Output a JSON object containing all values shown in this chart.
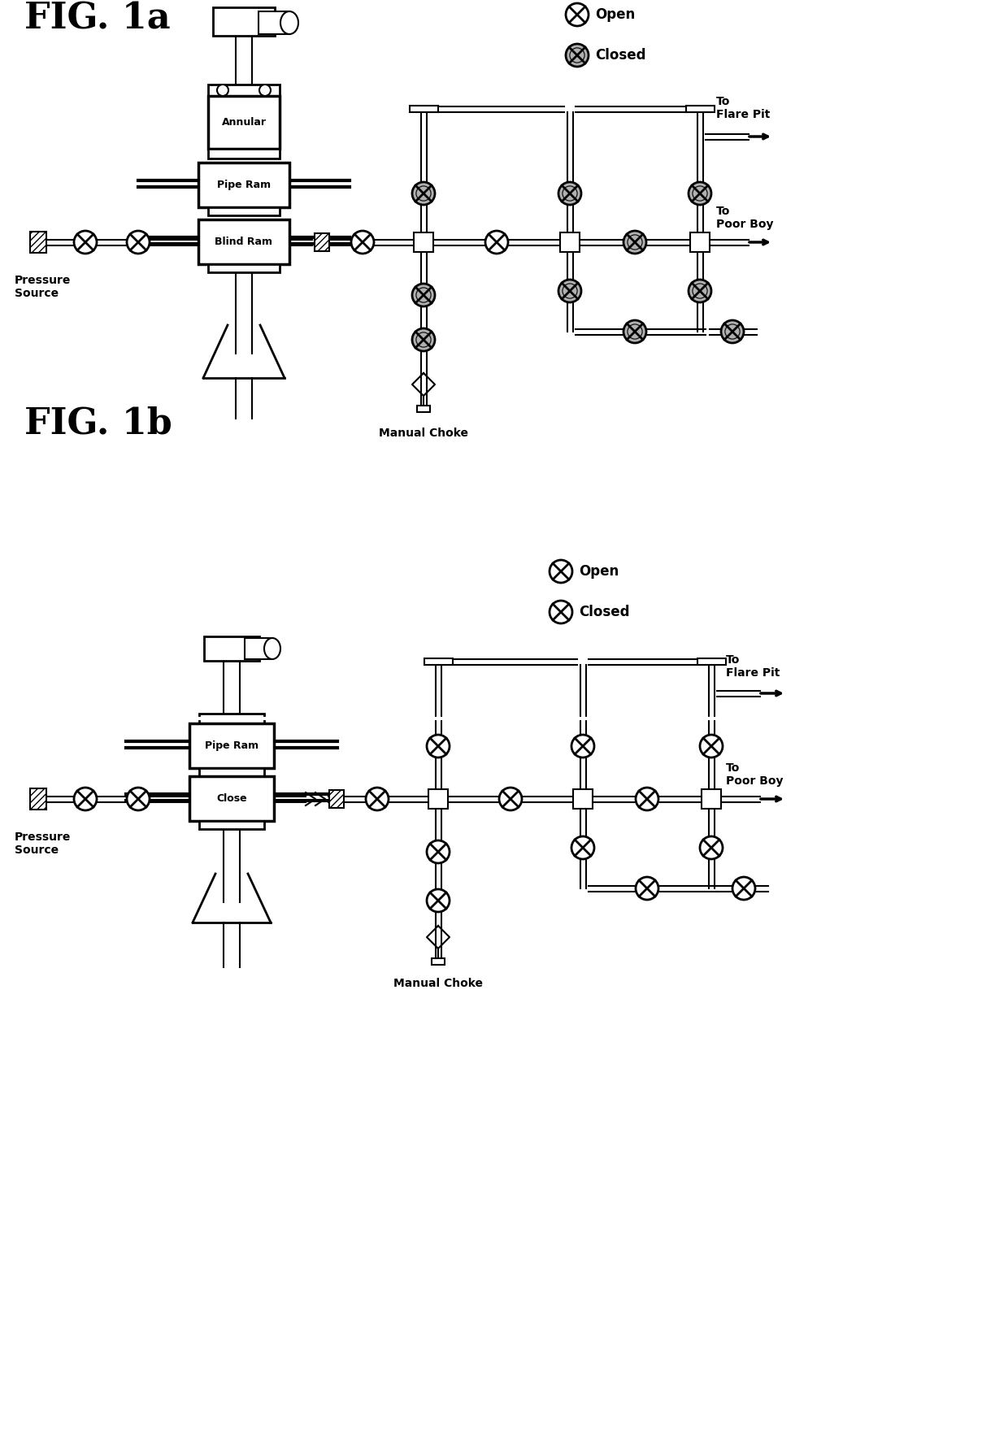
{
  "fig_width": 12.4,
  "fig_height": 17.68,
  "bg_color": "#ffffff",
  "line_color": "#000000",
  "lw": 1.5,
  "tlw": 2.5,
  "fig1a_title": "FIG. 1a",
  "fig1b_title": "FIG. 1b",
  "label_open": "Open",
  "label_closed": "Closed",
  "label_annular": "Annular",
  "label_pipe_ram": "Pipe Ram",
  "label_blind_ram": "Blind Ram",
  "label_close": "Close",
  "label_pressure": "Pressure\nSource",
  "label_manual_choke": "Manual Choke",
  "label_flare_pit": "To\nFlare Pit",
  "label_poor_boy": "To\nPoor Boy"
}
